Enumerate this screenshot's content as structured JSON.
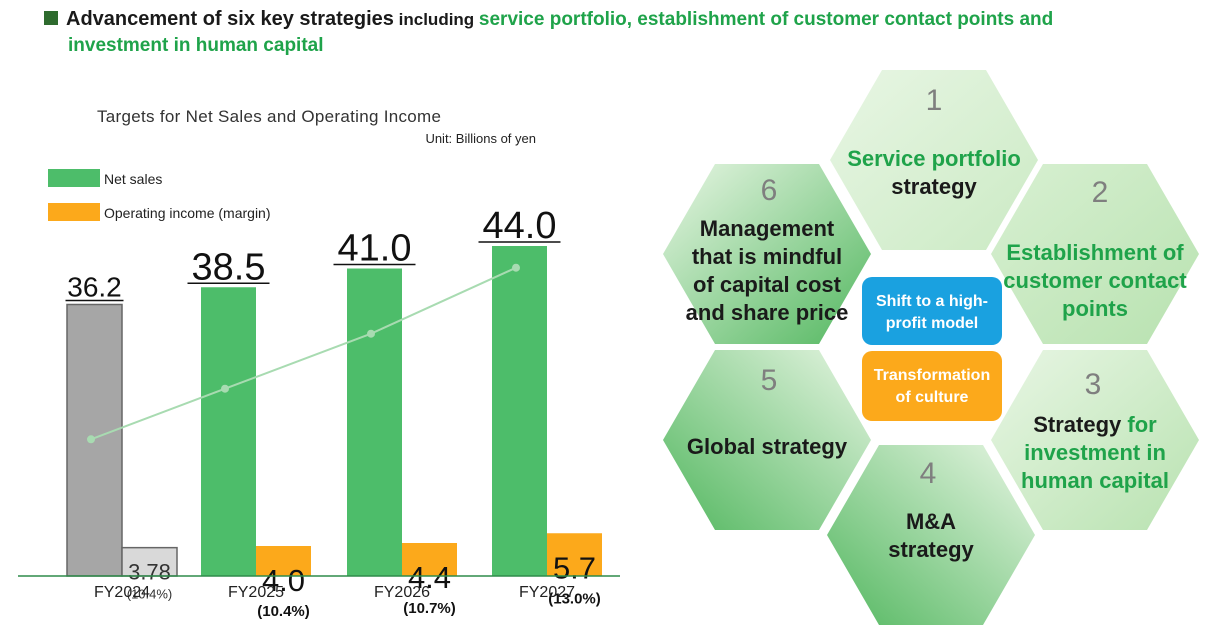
{
  "header": {
    "lead_black": "Advancement of six key strategies",
    "lead_small": " including ",
    "lead_green": "service portfolio, establishment of customer contact points and",
    "line2_green": "investment in human capital"
  },
  "chart_data": {
    "type": "bar",
    "title": "Targets for Net Sales and Operating Income",
    "unit": "Unit: Billions of yen",
    "categories": [
      "FY2024",
      "FY2025",
      "FY2026",
      "FY2027"
    ],
    "series": [
      {
        "name": "Net sales",
        "values": [
          36.2,
          38.5,
          41.0,
          44.0
        ],
        "labels": [
          "36.2",
          "38.5",
          "41.0",
          "44.0"
        ],
        "color": "#4dbd6a",
        "actual_color": "#a6a6a6"
      },
      {
        "name": "Operating income (margin)",
        "values": [
          3.78,
          4.0,
          4.4,
          5.7
        ],
        "labels": [
          "3.78",
          "4.0",
          "4.4",
          "5.7"
        ],
        "margins": [
          "(10.4%)",
          "(10.4%)",
          "(10.7%)",
          "(13.0%)"
        ],
        "color": "#fca91b",
        "actual_color": "#d9d9d9"
      }
    ],
    "trend_line_color": "#a8dbb1",
    "legend_position": "top-left",
    "grid": false
  },
  "strategies": {
    "items": [
      {
        "num": "1",
        "lines": [
          {
            "t": "Service portfolio",
            "c": "green"
          },
          {
            "t": "strategy",
            "c": "black"
          }
        ]
      },
      {
        "num": "2",
        "lines": [
          {
            "t": "Establishment of",
            "c": "green"
          },
          {
            "t": "customer contact",
            "c": "green"
          },
          {
            "t": "points",
            "c": "green"
          }
        ]
      },
      {
        "num": "3",
        "lines": [
          {
            "t": "Strategy ",
            "c": "black",
            "t2": "for",
            "c2": "green"
          },
          {
            "t": "investment in",
            "c": "green"
          },
          {
            "t": "human capital",
            "c": "green"
          }
        ]
      },
      {
        "num": "4",
        "lines": [
          {
            "t": "M&A",
            "c": "black"
          },
          {
            "t": "strategy",
            "c": "black"
          }
        ]
      },
      {
        "num": "5",
        "lines": [
          {
            "t": "Global strategy",
            "c": "black"
          }
        ]
      },
      {
        "num": "6",
        "lines": [
          {
            "t": "Management",
            "c": "black"
          },
          {
            "t": "that is mindful",
            "c": "black"
          },
          {
            "t": "of capital cost",
            "c": "black"
          },
          {
            "t": "and share price",
            "c": "black"
          }
        ]
      }
    ],
    "center": [
      {
        "lines": [
          "Shift to a high-",
          "profit model"
        ],
        "color": "#1aa1e0"
      },
      {
        "lines": [
          "Transformation",
          "of culture"
        ],
        "color": "#fca91b"
      }
    ],
    "colors": {
      "green": "#1fa34a",
      "black": "#1a1a1a",
      "number": "#7f7f7f",
      "hex_light": "#e8f6e4",
      "hex_mid": "#b8e2b0",
      "hex_dark": "#52b75f"
    }
  }
}
